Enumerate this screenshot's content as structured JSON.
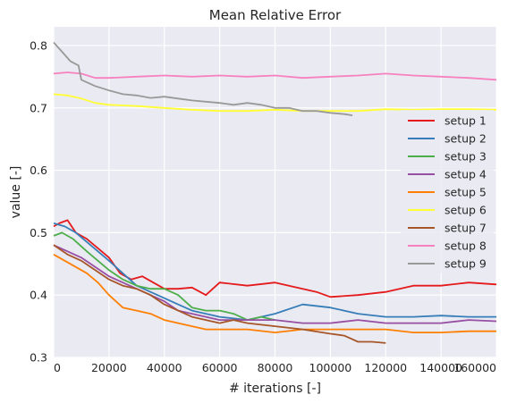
{
  "chart_data": {
    "type": "line",
    "title": "Mean Relative Error",
    "xlabel": "# iterations [-]",
    "ylabel": "value [-]",
    "xlim": [
      0,
      160000
    ],
    "ylim": [
      0.3,
      0.83
    ],
    "xticks": [
      0,
      20000,
      40000,
      60000,
      80000,
      100000,
      120000,
      140000,
      160000
    ],
    "xtick_labels": [
      "0",
      "20000",
      "40000",
      "60000",
      "80000",
      "100000",
      "120000",
      "140000",
      "160000"
    ],
    "yticks": [
      0.3,
      0.4,
      0.5,
      0.6,
      0.7,
      0.8
    ],
    "ytick_labels": [
      "0.3",
      "0.4",
      "0.5",
      "0.6",
      "0.7",
      "0.8"
    ],
    "grid": true,
    "legend_position": "center-right",
    "background": "#EAEAF2",
    "series": [
      {
        "name": "setup 1",
        "color": "#E41A1C",
        "x": [
          0,
          2000,
          5000,
          8000,
          12000,
          16000,
          20000,
          24000,
          28000,
          32000,
          36000,
          40000,
          45000,
          50000,
          55000,
          60000,
          70000,
          80000,
          90000,
          95000,
          100000,
          110000,
          120000,
          130000,
          140000,
          150000,
          160000
        ],
        "y": [
          0.51,
          0.515,
          0.52,
          0.5,
          0.49,
          0.475,
          0.46,
          0.435,
          0.425,
          0.43,
          0.42,
          0.41,
          0.41,
          0.412,
          0.4,
          0.42,
          0.415,
          0.42,
          0.41,
          0.405,
          0.397,
          0.4,
          0.405,
          0.415,
          0.415,
          0.42,
          0.417
        ]
      },
      {
        "name": "setup 2",
        "color": "#377EB8",
        "x": [
          0,
          4000,
          8000,
          12000,
          16000,
          20000,
          25000,
          30000,
          35000,
          40000,
          45000,
          50000,
          55000,
          60000,
          70000,
          80000,
          90000,
          100000,
          110000,
          120000,
          130000,
          140000,
          150000,
          160000
        ],
        "y": [
          0.515,
          0.51,
          0.5,
          0.485,
          0.47,
          0.455,
          0.435,
          0.415,
          0.405,
          0.395,
          0.385,
          0.375,
          0.37,
          0.365,
          0.36,
          0.37,
          0.385,
          0.38,
          0.37,
          0.365,
          0.365,
          0.367,
          0.365,
          0.365
        ]
      },
      {
        "name": "setup 3",
        "color": "#4DAF4A",
        "x": [
          0,
          3000,
          7000,
          12000,
          16000,
          20000,
          25000,
          30000,
          35000,
          40000,
          45000,
          50000,
          55000,
          60000,
          65000,
          70000,
          75000,
          80000
        ],
        "y": [
          0.495,
          0.5,
          0.49,
          0.47,
          0.455,
          0.44,
          0.425,
          0.415,
          0.41,
          0.41,
          0.4,
          0.38,
          0.375,
          0.375,
          0.37,
          0.36,
          0.365,
          0.36
        ]
      },
      {
        "name": "setup 4",
        "color": "#984EA3",
        "x": [
          0,
          5000,
          10000,
          15000,
          20000,
          25000,
          30000,
          35000,
          40000,
          45000,
          50000,
          55000,
          60000,
          70000,
          80000,
          90000,
          100000,
          110000,
          120000,
          130000,
          140000,
          150000,
          160000
        ],
        "y": [
          0.48,
          0.47,
          0.46,
          0.445,
          0.43,
          0.42,
          0.41,
          0.4,
          0.39,
          0.375,
          0.37,
          0.365,
          0.36,
          0.36,
          0.36,
          0.355,
          0.355,
          0.36,
          0.355,
          0.355,
          0.355,
          0.36,
          0.358
        ]
      },
      {
        "name": "setup 5",
        "color": "#FF7F00",
        "x": [
          0,
          4000,
          8000,
          12000,
          16000,
          20000,
          25000,
          30000,
          35000,
          40000,
          45000,
          50000,
          55000,
          60000,
          70000,
          80000,
          90000,
          100000,
          110000,
          120000,
          130000,
          140000,
          150000,
          160000
        ],
        "y": [
          0.465,
          0.455,
          0.445,
          0.435,
          0.42,
          0.4,
          0.38,
          0.375,
          0.37,
          0.36,
          0.355,
          0.35,
          0.345,
          0.345,
          0.345,
          0.34,
          0.345,
          0.345,
          0.345,
          0.345,
          0.34,
          0.34,
          0.342,
          0.342
        ]
      },
      {
        "name": "setup 6",
        "color": "#FFFF33",
        "x": [
          0,
          5000,
          10000,
          15000,
          20000,
          30000,
          40000,
          50000,
          60000,
          70000,
          80000,
          90000,
          100000,
          110000,
          120000,
          130000,
          140000,
          150000,
          160000
        ],
        "y": [
          0.722,
          0.72,
          0.715,
          0.708,
          0.705,
          0.703,
          0.7,
          0.697,
          0.695,
          0.695,
          0.697,
          0.695,
          0.695,
          0.695,
          0.698,
          0.697,
          0.698,
          0.698,
          0.697
        ]
      },
      {
        "name": "setup 7",
        "color": "#A65628",
        "x": [
          0,
          5000,
          10000,
          15000,
          20000,
          25000,
          30000,
          35000,
          40000,
          45000,
          50000,
          55000,
          60000,
          65000,
          70000,
          80000,
          90000,
          100000,
          105000,
          110000,
          115000,
          120000
        ],
        "y": [
          0.48,
          0.465,
          0.455,
          0.44,
          0.425,
          0.415,
          0.41,
          0.4,
          0.385,
          0.375,
          0.365,
          0.36,
          0.355,
          0.36,
          0.355,
          0.35,
          0.345,
          0.338,
          0.335,
          0.325,
          0.325,
          0.323
        ]
      },
      {
        "name": "setup 8",
        "color": "#F781BF",
        "x": [
          0,
          5000,
          10000,
          15000,
          20000,
          30000,
          40000,
          50000,
          60000,
          70000,
          80000,
          90000,
          100000,
          110000,
          120000,
          130000,
          140000,
          150000,
          160000
        ],
        "y": [
          0.755,
          0.757,
          0.755,
          0.748,
          0.748,
          0.75,
          0.752,
          0.75,
          0.752,
          0.75,
          0.752,
          0.748,
          0.75,
          0.752,
          0.755,
          0.752,
          0.75,
          0.748,
          0.745
        ]
      },
      {
        "name": "setup 9",
        "color": "#999999",
        "x": [
          0,
          3000,
          6000,
          9000,
          10000,
          15000,
          20000,
          25000,
          30000,
          35000,
          40000,
          45000,
          50000,
          55000,
          60000,
          65000,
          70000,
          75000,
          80000,
          85000,
          90000,
          95000,
          100000,
          105000,
          108000
        ],
        "y": [
          0.805,
          0.79,
          0.775,
          0.768,
          0.745,
          0.735,
          0.728,
          0.722,
          0.72,
          0.716,
          0.718,
          0.715,
          0.712,
          0.71,
          0.708,
          0.705,
          0.708,
          0.705,
          0.7,
          0.7,
          0.695,
          0.695,
          0.692,
          0.69,
          0.688
        ]
      }
    ]
  }
}
